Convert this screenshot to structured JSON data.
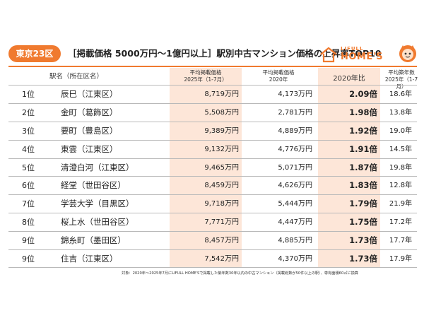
{
  "header": {
    "area": "東京23区",
    "title": "［掲載価格 5000万円〜1億円以上］駅別中古マンション価格の上昇率TOP10",
    "logo_top": "LIFULL",
    "logo": "HOME'S"
  },
  "table": {
    "headers": {
      "name": "駅名（所在区名）",
      "price_2025_l1": "平均掲載価格",
      "price_2025_l2": "2025年（1-7月）",
      "price_2020_l1": "平均掲載価格",
      "price_2020_l2": "2020年",
      "ratio": "2020年比",
      "age_l1": "平均築年数",
      "age_l2": "2025年（1-7月）"
    },
    "rows": [
      {
        "rank": "1位",
        "name": "辰巳（江東区）",
        "p25": "8,719万円",
        "p20": "4,173万円",
        "ratio": "2.09倍",
        "age": "18.6年"
      },
      {
        "rank": "2位",
        "name": "金町（葛飾区）",
        "p25": "5,508万円",
        "p20": "2,781万円",
        "ratio": "1.98倍",
        "age": "13.8年"
      },
      {
        "rank": "3位",
        "name": "要町（豊島区）",
        "p25": "9,389万円",
        "p20": "4,889万円",
        "ratio": "1.92倍",
        "age": "19.0年"
      },
      {
        "rank": "4位",
        "name": "東雲（江東区）",
        "p25": "9,132万円",
        "p20": "4,776万円",
        "ratio": "1.91倍",
        "age": "14.5年"
      },
      {
        "rank": "5位",
        "name": "清澄白河（江東区）",
        "p25": "9,465万円",
        "p20": "5,071万円",
        "ratio": "1.87倍",
        "age": "19.8年"
      },
      {
        "rank": "6位",
        "name": "経堂（世田谷区）",
        "p25": "8,459万円",
        "p20": "4,626万円",
        "ratio": "1.83倍",
        "age": "12.8年"
      },
      {
        "rank": "7位",
        "name": "学芸大学（目黒区）",
        "p25": "9,718万円",
        "p20": "5,444万円",
        "ratio": "1.79倍",
        "age": "21.9年"
      },
      {
        "rank": "8位",
        "name": "桜上水（世田谷区）",
        "p25": "7,771万円",
        "p20": "4,447万円",
        "ratio": "1.75倍",
        "age": "17.2年"
      },
      {
        "rank": "9位",
        "name": "錦糸町（墨田区）",
        "p25": "8,457万円",
        "p20": "4,885万円",
        "ratio": "1.73倍",
        "age": "17.7年"
      },
      {
        "rank": "9位",
        "name": "住吉（江東区）",
        "p25": "7,542万円",
        "p20": "4,370万円",
        "ratio": "1.73倍",
        "age": "17.9年"
      }
    ]
  },
  "footnote": "対象：2020年〜2025年7月にLIFULL HOME'Sで掲載した築年数30年以内の中古マンション（掲載総数が50件以上の駅）、専有面積60㎡に換算",
  "colors": {
    "accent": "#f07a2f",
    "highlight": "#fde6d8"
  }
}
